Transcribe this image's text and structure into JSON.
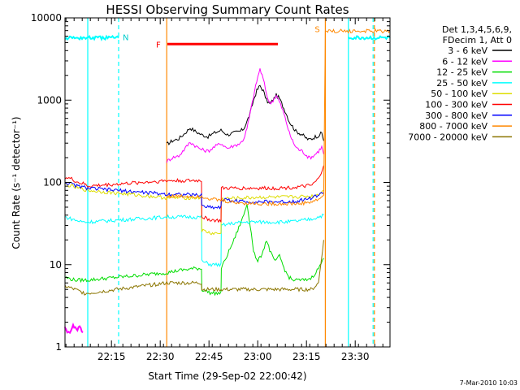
{
  "chart_data": {
    "type": "line",
    "title": "HESSI Observing Summary Count Rates",
    "xlabel": "Start Time (29-Sep-02 22:00:42)",
    "ylabel": "Count Rate (s⁻¹ detector⁻¹)",
    "ylog": true,
    "ylim": [
      1,
      10000
    ],
    "xlim_minutes": [
      0,
      100
    ],
    "x_tick_labels": [
      "22:15",
      "22:30",
      "22:45",
      "23:00",
      "23:15",
      "23:30"
    ],
    "y_tick_labels": [
      "1",
      "10",
      "100",
      "1000",
      "10000"
    ],
    "legend": {
      "header_line1": "Det 1,3,4,5,6,9,",
      "header_line2": "FDecim 1, Att 0",
      "placement": "right"
    },
    "series": [
      {
        "name": "3 - 6 keV",
        "color": "#000000",
        "x": [
          31.3,
          33,
          35,
          37,
          38.5,
          40,
          42,
          44,
          46,
          48,
          50,
          52,
          54,
          55,
          56,
          57,
          58,
          59,
          60,
          61,
          62,
          63,
          64,
          65,
          66,
          67,
          68,
          69,
          70,
          71,
          72,
          73,
          74,
          75,
          76,
          77,
          78,
          79,
          79.6
        ],
        "y": [
          290,
          320,
          340,
          400,
          460,
          420,
          380,
          360,
          400,
          430,
          380,
          400,
          420,
          450,
          550,
          700,
          1000,
          1300,
          1500,
          1300,
          1000,
          900,
          1000,
          1150,
          1050,
          850,
          700,
          550,
          480,
          420,
          400,
          380,
          350,
          330,
          340,
          360,
          370,
          400,
          320
        ]
      },
      {
        "name": "6 - 12 keV",
        "color": "#ff00ff",
        "x": [
          31.3,
          33,
          35,
          37,
          38.5,
          40,
          42,
          44,
          46,
          48,
          50,
          52,
          54,
          55,
          56,
          57,
          58,
          59,
          60,
          61,
          62,
          63,
          64,
          65,
          66,
          67,
          68,
          69,
          70,
          71,
          72,
          73,
          74,
          75,
          76,
          77,
          78,
          79,
          79.6
        ],
        "y": [
          180,
          200,
          210,
          260,
          310,
          280,
          250,
          240,
          270,
          300,
          260,
          280,
          300,
          340,
          450,
          700,
          1100,
          1700,
          2400,
          1800,
          1200,
          900,
          1000,
          1150,
          950,
          750,
          560,
          400,
          320,
          270,
          250,
          240,
          220,
          200,
          205,
          220,
          240,
          270,
          220
        ]
      },
      {
        "name": "12 - 25 keV",
        "color": "#00dd00",
        "x": [
          0,
          3,
          6,
          7,
          31.3,
          35,
          40,
          42,
          42.1,
          45,
          48,
          48.1,
          52,
          55,
          56,
          57,
          58,
          59,
          60,
          61,
          62,
          63,
          64,
          65,
          66,
          67,
          68,
          69,
          70,
          72,
          74,
          76,
          78,
          79.6
        ],
        "y": [
          7,
          6.5,
          6.5,
          6.5,
          8,
          8.5,
          9,
          9,
          5,
          4.5,
          4.5,
          9,
          20,
          40,
          55,
          30,
          15,
          11,
          12,
          15,
          20,
          15,
          12,
          11,
          13,
          10,
          8,
          7,
          6.5,
          6.5,
          6.5,
          7,
          9,
          12
        ]
      },
      {
        "name": "25 - 50 keV",
        "color": "#00ffff",
        "x": [
          0,
          2,
          4,
          6,
          7,
          31.3,
          35,
          40,
          42,
          42.1,
          45,
          48,
          48.1,
          52,
          56,
          60,
          64,
          68,
          72,
          76,
          79.6
        ],
        "y": [
          38,
          36,
          34,
          33,
          33,
          38,
          38,
          38,
          38,
          11,
          10,
          10,
          30,
          32,
          33,
          33,
          33,
          33,
          34,
          36,
          40
        ]
      },
      {
        "name": "50 - 100 keV",
        "color": "#dddd00",
        "x": [
          0,
          2,
          4,
          6,
          7,
          31.3,
          35,
          40,
          42,
          42.1,
          45,
          48,
          48.1,
          52,
          56,
          60,
          64,
          68,
          72,
          76,
          78,
          79.6
        ],
        "y": [
          95,
          90,
          85,
          82,
          80,
          65,
          65,
          65,
          65,
          26,
          24,
          24,
          63,
          64,
          65,
          66,
          66,
          66,
          67,
          68,
          72,
          80
        ]
      },
      {
        "name": "100 - 300 keV",
        "color": "#ff0000",
        "x": [
          0,
          2,
          4,
          6,
          7,
          31.3,
          35,
          40,
          42,
          42.1,
          45,
          48,
          48.1,
          52,
          56,
          60,
          64,
          68,
          72,
          76,
          78,
          79.6
        ],
        "y": [
          115,
          110,
          100,
          95,
          90,
          105,
          105,
          105,
          105,
          38,
          35,
          34,
          85,
          85,
          85,
          85,
          85,
          86,
          88,
          92,
          110,
          160
        ]
      },
      {
        "name": "300 - 800 keV",
        "color": "#0000ff",
        "x": [
          0,
          2,
          4,
          6,
          7,
          31.3,
          35,
          40,
          42,
          42.1,
          45,
          48,
          48.1,
          52,
          56,
          60,
          64,
          68,
          72,
          76,
          79.6
        ],
        "y": [
          100,
          95,
          90,
          87,
          85,
          72,
          72,
          70,
          70,
          52,
          50,
          50,
          62,
          60,
          58,
          58,
          58,
          58,
          60,
          65,
          75
        ]
      },
      {
        "name": "800 - 7000 keV",
        "color": "#ff8800",
        "x": [
          31.3,
          35,
          40,
          42,
          45,
          48,
          52,
          56,
          60,
          64,
          68,
          72,
          76,
          78,
          79.6,
          80.1,
          81.5,
          100
        ],
        "y": [
          68,
          68,
          68,
          68,
          63,
          60,
          57,
          56,
          55,
          55,
          55,
          55,
          58,
          62,
          70,
          6900,
          6900,
          6900
        ]
      },
      {
        "name": "7000 - 20000 keV",
        "color": "#8b7500",
        "x": [
          0,
          3,
          6,
          7,
          31.3,
          35,
          40,
          42,
          42.1,
          45,
          48,
          52,
          56,
          60,
          64,
          68,
          72,
          76,
          78,
          79.6
        ],
        "y": [
          5.5,
          5,
          4.5,
          4.5,
          6,
          6,
          6,
          6,
          5,
          5,
          5,
          5,
          5,
          5,
          5,
          5,
          5,
          5,
          6,
          20
        ]
      }
    ],
    "extra_traces": [
      {
        "color": "#00ffff",
        "x": [
          0,
          16.5
        ],
        "y": [
          5700,
          5700
        ]
      },
      {
        "color": "#00ffff",
        "x": [
          87.2,
          100
        ],
        "y": [
          5700,
          5700
        ]
      },
      {
        "color": "#ff00ff",
        "x": [
          0,
          0.3,
          1.5,
          2.5,
          3.5,
          4.5,
          5.5
        ],
        "y": [
          1.8,
          1.6,
          1.5,
          1.9,
          1.6,
          1.8,
          1.5
        ]
      }
    ],
    "flag_labels": {
      "N": "N",
      "F": "F",
      "S": "S"
    },
    "flag_bars": [
      {
        "label": "F",
        "color": "#ff0000",
        "x_start": 31.5,
        "x_end": 65.5,
        "y": 4800
      }
    ],
    "vertical_lines": [
      {
        "x": 16.5,
        "color": "#00ffff",
        "style": "dashed"
      },
      {
        "x": 7.0,
        "color": "#00ffff",
        "style": "solid"
      },
      {
        "x": 31.3,
        "color": "#ff8800",
        "style": "solid"
      },
      {
        "x": 80.1,
        "color": "#ff8800",
        "style": "solid"
      },
      {
        "x": 87.2,
        "color": "#00ffff",
        "style": "solid"
      },
      {
        "x": 94.8,
        "color": "#00ffff",
        "style": "dashed"
      },
      {
        "x": 95.2,
        "color": "#ff8800",
        "style": "dashed"
      }
    ]
  },
  "footer": {
    "timestamp": "7-Mar-2010 10:03"
  }
}
